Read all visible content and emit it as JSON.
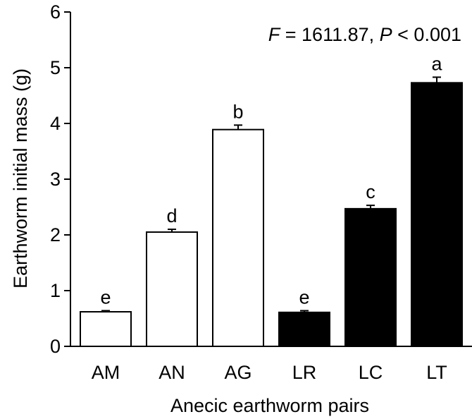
{
  "chart_data": {
    "type": "bar",
    "categories": [
      "AM",
      "AN",
      "AG",
      "LR",
      "LC",
      "LT"
    ],
    "values": [
      0.62,
      2.05,
      3.89,
      0.61,
      2.47,
      4.73
    ],
    "errors": [
      0.02,
      0.05,
      0.08,
      0.03,
      0.06,
      0.1
    ],
    "letters": [
      "e",
      "d",
      "b",
      "e",
      "c",
      "a"
    ],
    "fills": [
      "#ffffff",
      "#ffffff",
      "#ffffff",
      "#000000",
      "#000000",
      "#000000"
    ],
    "xlabel": "Anecic earthworm pairs",
    "ylabel": "Earthworm initial mass (g)",
    "ylim": [
      0,
      6
    ],
    "yticks": [
      "0",
      "1",
      "2",
      "3",
      "4",
      "5",
      "6"
    ],
    "annotation": {
      "F_symbol": "F",
      "F_value": " = 1611.87, ",
      "P_symbol": "P",
      "P_value": " < 0.001"
    },
    "grid": false
  }
}
